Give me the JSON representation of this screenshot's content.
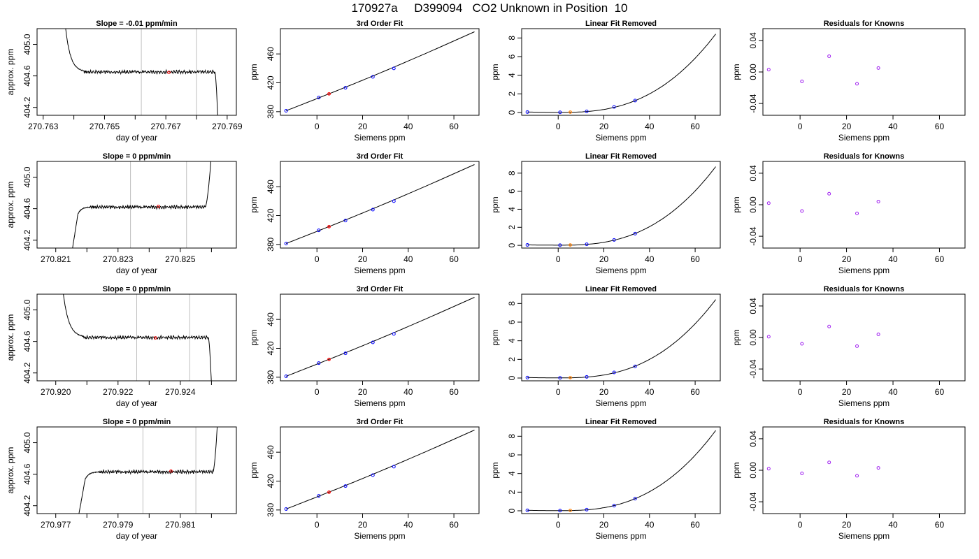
{
  "page": {
    "title": "170927a     D399094   CO2 Unknown in Position  10"
  },
  "colors": {
    "line": "#000000",
    "known": "#0000ff",
    "unknown": "#ff0000",
    "unknown_lin": "#ff7f00",
    "resid": "#a020f0",
    "vline": "#bebebe"
  },
  "chart_data": [
    {
      "type": "line",
      "row": 0,
      "col": 0,
      "title": "Slope =  -0.01  ppm/min",
      "xlabel": "day of year",
      "ylabel": "approx. ppm",
      "xlim": [
        270.7628,
        270.7693
      ],
      "ylim": [
        404.1,
        405.2
      ],
      "xticks": [
        270.763,
        270.764,
        270.765,
        270.766,
        270.767,
        270.768,
        270.769
      ],
      "xtick_labels": [
        "270.763",
        "",
        "270.765",
        "",
        "270.767",
        "",
        "270.769"
      ],
      "yticks": [
        404.2,
        404.6,
        405.0
      ],
      "ytick_labels": [
        "404.2",
        "404.6",
        "405.0"
      ],
      "vlines": [
        270.7662,
        270.768
      ],
      "marker": {
        "x": 270.7671,
        "y": 404.645
      },
      "trace": {
        "x0": 270.7636,
        "x1": 270.7687,
        "rise_end": 270.76433,
        "hold_end": 270.7686,
        "start": 405.9,
        "level": 404.65,
        "end": 404.0,
        "direction": "down",
        "tail": "drop"
      }
    },
    {
      "type": "line",
      "row": 0,
      "col": 1,
      "title": "3rd Order Fit",
      "xlabel": "Siemens ppm",
      "ylabel": "ppm",
      "xlim": [
        -16,
        71
      ],
      "ylim": [
        375,
        495
      ],
      "xticks": [
        0,
        20,
        40,
        60
      ],
      "xtick_labels": [
        "0",
        "20",
        "40",
        "60"
      ],
      "yticks": [
        380,
        420,
        460
      ],
      "ytick_labels": [
        "380",
        "420",
        "460"
      ],
      "curve": {
        "kind": "fit",
        "x": [
          -13.5,
          69
        ],
        "y": [
          381.3,
          490.6
        ]
      },
      "knowns": {
        "x": [
          -13.5,
          0.8,
          12.5,
          24.5,
          33.7
        ],
        "y": [
          381.3,
          399.5,
          413.1,
          428.2,
          440.0
        ]
      },
      "unknown": {
        "x": 5.3,
        "y": 404.65
      }
    },
    {
      "type": "line",
      "row": 0,
      "col": 2,
      "title": "Linear Fit Removed",
      "xlabel": "Siemens ppm",
      "ylabel": "ppm",
      "xlim": [
        -16,
        71
      ],
      "ylim": [
        -0.3,
        9.0
      ],
      "xticks": [
        0,
        20,
        40,
        60
      ],
      "xtick_labels": [
        "0",
        "20",
        "40",
        "60"
      ],
      "yticks": [
        0,
        2,
        4,
        6,
        8
      ],
      "ytick_labels": [
        "0",
        "2",
        "4",
        "6",
        "8"
      ],
      "curve": {
        "kind": "cubic",
        "x": [
          -13.5,
          69
        ],
        "y_end": 8.4
      },
      "knowns": {
        "x": [
          -13.5,
          0.8,
          12.5,
          24.5,
          33.7
        ],
        "y": [
          0.05,
          0.02,
          0.12,
          0.6,
          1.28
        ]
      },
      "unknown": {
        "x": 5.3,
        "y": 0.04
      }
    },
    {
      "type": "scatter",
      "row": 0,
      "col": 3,
      "title": "Residuals for Knowns",
      "xlabel": "Siemens ppm",
      "ylabel": "ppm",
      "xlim": [
        -16,
        71
      ],
      "ylim": [
        -0.055,
        0.055
      ],
      "xticks": [
        0,
        20,
        40,
        60
      ],
      "xtick_labels": [
        "0",
        "20",
        "40",
        "60"
      ],
      "yticks": [
        -0.04,
        0.0,
        0.04
      ],
      "ytick_labels": [
        "-0.04",
        "0.00",
        "0.04"
      ],
      "points": {
        "x": [
          -13.5,
          0.8,
          12.5,
          24.5,
          33.7
        ],
        "y": [
          0.003,
          -0.012,
          0.02,
          -0.015,
          0.005
        ]
      }
    },
    {
      "type": "line",
      "row": 1,
      "col": 0,
      "title": "Slope =  0  ppm/min",
      "xlabel": "day of year",
      "ylabel": "approx. ppm",
      "xlim": [
        270.8204,
        270.8268
      ],
      "ylim": [
        404.1,
        405.2
      ],
      "xticks": [
        270.821,
        270.822,
        270.823,
        270.824,
        270.825,
        270.826
      ],
      "xtick_labels": [
        "270.821",
        "",
        "270.823",
        "",
        "270.825",
        ""
      ],
      "yticks": [
        404.2,
        404.6,
        405.0
      ],
      "ytick_labels": [
        "404.2",
        "404.6",
        "405.0"
      ],
      "vlines": [
        270.8234,
        270.8252
      ],
      "marker": {
        "x": 270.8243,
        "y": 404.63
      },
      "trace": {
        "x0": 270.8215,
        "x1": 270.826,
        "rise_end": 270.8221,
        "hold_end": 270.8258,
        "start": 404.0,
        "level": 404.62,
        "end": 405.3,
        "direction": "up",
        "tail": "rise"
      }
    },
    {
      "type": "line",
      "row": 1,
      "col": 1,
      "title": "3rd Order Fit",
      "xlabel": "Siemens ppm",
      "ylabel": "ppm",
      "xlim": [
        -16,
        71
      ],
      "ylim": [
        375,
        495
      ],
      "xticks": [
        0,
        20,
        40,
        60
      ],
      "xtick_labels": [
        "0",
        "20",
        "40",
        "60"
      ],
      "yticks": [
        380,
        420,
        460
      ],
      "ytick_labels": [
        "380",
        "420",
        "460"
      ],
      "curve": {
        "kind": "fit",
        "x": [
          -13.5,
          69
        ],
        "y": [
          381.3,
          490.6
        ]
      },
      "knowns": {
        "x": [
          -13.5,
          0.8,
          12.5,
          24.5,
          33.7
        ],
        "y": [
          381.3,
          399.5,
          413.1,
          428.2,
          440.0
        ]
      },
      "unknown": {
        "x": 5.3,
        "y": 404.62
      }
    },
    {
      "type": "line",
      "row": 1,
      "col": 2,
      "title": "Linear Fit Removed",
      "xlabel": "Siemens ppm",
      "ylabel": "ppm",
      "xlim": [
        -16,
        71
      ],
      "ylim": [
        -0.3,
        9.3
      ],
      "xticks": [
        0,
        20,
        40,
        60
      ],
      "xtick_labels": [
        "0",
        "20",
        "40",
        "60"
      ],
      "yticks": [
        0,
        2,
        4,
        6,
        8
      ],
      "ytick_labels": [
        "0",
        "2",
        "4",
        "6",
        "8"
      ],
      "curve": {
        "kind": "cubic",
        "x": [
          -13.5,
          69
        ],
        "y_end": 8.7
      },
      "knowns": {
        "x": [
          -13.5,
          0.8,
          12.5,
          24.5,
          33.7
        ],
        "y": [
          0.05,
          0.02,
          0.12,
          0.6,
          1.3
        ]
      },
      "unknown": {
        "x": 5.3,
        "y": 0.04
      }
    },
    {
      "type": "scatter",
      "row": 1,
      "col": 3,
      "title": "Residuals for Knowns",
      "xlabel": "Siemens ppm",
      "ylabel": "ppm",
      "xlim": [
        -16,
        71
      ],
      "ylim": [
        -0.055,
        0.055
      ],
      "xticks": [
        0,
        20,
        40,
        60
      ],
      "xtick_labels": [
        "0",
        "20",
        "40",
        "60"
      ],
      "yticks": [
        -0.04,
        0.0,
        0.04
      ],
      "ytick_labels": [
        "-0.04",
        "0.00",
        "0.04"
      ],
      "points": {
        "x": [
          -13.5,
          0.8,
          12.5,
          24.5,
          33.7
        ],
        "y": [
          0.002,
          -0.008,
          0.014,
          -0.011,
          0.004
        ]
      }
    },
    {
      "type": "line",
      "row": 2,
      "col": 0,
      "title": "Slope =  0  ppm/min",
      "xlabel": "day of year",
      "ylabel": "approx. ppm",
      "xlim": [
        270.9194,
        270.9258
      ],
      "ylim": [
        404.1,
        405.2
      ],
      "xticks": [
        270.92,
        270.921,
        270.922,
        270.923,
        270.924,
        270.925
      ],
      "xtick_labels": [
        "270.920",
        "",
        "270.922",
        "",
        "270.924",
        ""
      ],
      "yticks": [
        404.2,
        404.6,
        405.0
      ],
      "ytick_labels": [
        "404.2",
        "404.6",
        "405.0"
      ],
      "vlines": [
        270.9226,
        270.9243
      ],
      "marker": {
        "x": 270.9232,
        "y": 404.645
      },
      "trace": {
        "x0": 270.9201,
        "x1": 270.925,
        "rise_end": 270.9209,
        "hold_end": 270.9249,
        "start": 405.9,
        "level": 404.65,
        "end": 404.05,
        "direction": "down",
        "tail": "drop"
      }
    },
    {
      "type": "line",
      "row": 2,
      "col": 1,
      "title": "3rd Order Fit",
      "xlabel": "Siemens ppm",
      "ylabel": "ppm",
      "xlim": [
        -16,
        71
      ],
      "ylim": [
        375,
        495
      ],
      "xticks": [
        0,
        20,
        40,
        60
      ],
      "xtick_labels": [
        "0",
        "20",
        "40",
        "60"
      ],
      "yticks": [
        380,
        420,
        460
      ],
      "ytick_labels": [
        "380",
        "420",
        "460"
      ],
      "curve": {
        "kind": "fit",
        "x": [
          -13.5,
          69
        ],
        "y": [
          381.3,
          490.6
        ]
      },
      "knowns": {
        "x": [
          -13.5,
          0.8,
          12.5,
          24.5,
          33.7
        ],
        "y": [
          381.3,
          399.5,
          413.1,
          428.2,
          440.0
        ]
      },
      "unknown": {
        "x": 5.3,
        "y": 404.65
      }
    },
    {
      "type": "line",
      "row": 2,
      "col": 2,
      "title": "Linear Fit Removed",
      "xlabel": "Siemens ppm",
      "ylabel": "ppm",
      "xlim": [
        -16,
        71
      ],
      "ylim": [
        -0.3,
        9.0
      ],
      "xticks": [
        0,
        20,
        40,
        60
      ],
      "xtick_labels": [
        "0",
        "20",
        "40",
        "60"
      ],
      "yticks": [
        0,
        2,
        4,
        6,
        8
      ],
      "ytick_labels": [
        "0",
        "2",
        "4",
        "6",
        "8"
      ],
      "curve": {
        "kind": "cubic",
        "x": [
          -13.5,
          69
        ],
        "y_end": 8.4
      },
      "knowns": {
        "x": [
          -13.5,
          0.8,
          12.5,
          24.5,
          33.7
        ],
        "y": [
          0.05,
          0.02,
          0.12,
          0.6,
          1.25
        ]
      },
      "unknown": {
        "x": 5.3,
        "y": 0.04
      }
    },
    {
      "type": "scatter",
      "row": 2,
      "col": 3,
      "title": "Residuals for Knowns",
      "xlabel": "Siemens ppm",
      "ylabel": "ppm",
      "xlim": [
        -16,
        71
      ],
      "ylim": [
        -0.055,
        0.055
      ],
      "xticks": [
        0,
        20,
        40,
        60
      ],
      "xtick_labels": [
        "0",
        "20",
        "40",
        "60"
      ],
      "yticks": [
        -0.04,
        0.0,
        0.04
      ],
      "ytick_labels": [
        "-0.04",
        "0.00",
        "0.04"
      ],
      "points": {
        "x": [
          -13.5,
          0.8,
          12.5,
          24.5,
          33.7
        ],
        "y": [
          0.001,
          -0.008,
          0.014,
          -0.011,
          0.004
        ]
      }
    },
    {
      "type": "line",
      "row": 3,
      "col": 0,
      "title": "Slope =  0  ppm/min",
      "xlabel": "day of year",
      "ylabel": "approx. ppm",
      "xlim": [
        270.9764,
        270.9828
      ],
      "ylim": [
        404.1,
        405.2
      ],
      "xticks": [
        270.977,
        270.978,
        270.979,
        270.98,
        270.981,
        270.982
      ],
      "xtick_labels": [
        "270.977",
        "",
        "270.979",
        "",
        "270.981",
        ""
      ],
      "yticks": [
        404.2,
        404.6,
        405.0
      ],
      "ytick_labels": [
        "404.2",
        "404.6",
        "405.0"
      ],
      "vlines": [
        270.9798,
        270.9815
      ],
      "marker": {
        "x": 270.9807,
        "y": 404.64
      },
      "trace": {
        "x0": 270.9777,
        "x1": 270.9822,
        "rise_end": 270.9784,
        "hold_end": 270.98205,
        "start": 404.0,
        "level": 404.63,
        "end": 405.3,
        "direction": "up",
        "tail": "rise"
      }
    },
    {
      "type": "line",
      "row": 3,
      "col": 1,
      "title": "3rd Order Fit",
      "xlabel": "Siemens ppm",
      "ylabel": "ppm",
      "xlim": [
        -16,
        71
      ],
      "ylim": [
        375,
        495
      ],
      "xticks": [
        0,
        20,
        40,
        60
      ],
      "xtick_labels": [
        "0",
        "20",
        "40",
        "60"
      ],
      "yticks": [
        380,
        420,
        460
      ],
      "ytick_labels": [
        "380",
        "420",
        "460"
      ],
      "curve": {
        "kind": "fit",
        "x": [
          -13.5,
          69
        ],
        "y": [
          381.3,
          490.6
        ]
      },
      "knowns": {
        "x": [
          -13.5,
          0.8,
          12.5,
          24.5,
          33.7
        ],
        "y": [
          381.3,
          399.5,
          413.1,
          428.2,
          440.0
        ]
      },
      "unknown": {
        "x": 5.3,
        "y": 404.64
      }
    },
    {
      "type": "line",
      "row": 3,
      "col": 2,
      "title": "Linear Fit Removed",
      "xlabel": "Siemens ppm",
      "ylabel": "ppm",
      "xlim": [
        -16,
        71
      ],
      "ylim": [
        -0.3,
        9.0
      ],
      "xticks": [
        0,
        20,
        40,
        60
      ],
      "xtick_labels": [
        "0",
        "20",
        "40",
        "60"
      ],
      "yticks": [
        0,
        2,
        4,
        6,
        8
      ],
      "ytick_labels": [
        "0",
        "2",
        "4",
        "6",
        "8"
      ],
      "curve": {
        "kind": "cubic",
        "x": [
          -13.5,
          69
        ],
        "y_end": 8.6
      },
      "knowns": {
        "x": [
          -13.5,
          0.8,
          12.5,
          24.5,
          33.7
        ],
        "y": [
          0.05,
          0.02,
          0.12,
          0.55,
          1.3
        ]
      },
      "unknown": {
        "x": 5.3,
        "y": 0.04
      }
    },
    {
      "type": "scatter",
      "row": 3,
      "col": 3,
      "title": "Residuals for Knowns",
      "xlabel": "Siemens ppm",
      "ylabel": "ppm",
      "xlim": [
        -16,
        71
      ],
      "ylim": [
        -0.055,
        0.055
      ],
      "xticks": [
        0,
        20,
        40,
        60
      ],
      "xtick_labels": [
        "0",
        "20",
        "40",
        "60"
      ],
      "yticks": [
        -0.04,
        0.0,
        0.04
      ],
      "ytick_labels": [
        "-0.04",
        "0.00",
        "0.04"
      ],
      "points": {
        "x": [
          -13.5,
          0.8,
          12.5,
          24.5,
          33.7
        ],
        "y": [
          0.002,
          -0.004,
          0.01,
          -0.007,
          0.003
        ]
      }
    }
  ]
}
